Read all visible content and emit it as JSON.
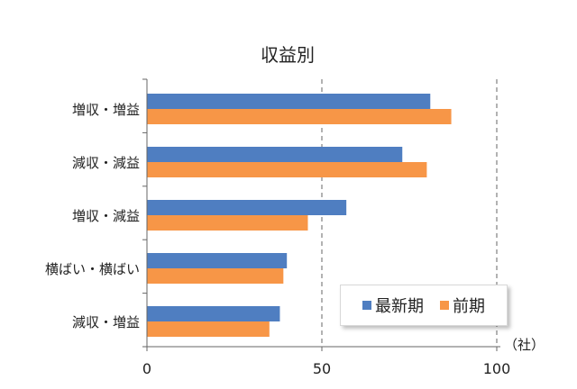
{
  "chart_data": {
    "type": "bar",
    "orientation": "horizontal",
    "title": "収益別",
    "categories": [
      "増収・増益",
      "減収・減益",
      "増収・減益",
      "横ばい・横ばい",
      "減収・増益"
    ],
    "series": [
      {
        "name": "最新期",
        "color": "#4f7ec1",
        "values": [
          81,
          73,
          57,
          40,
          38
        ]
      },
      {
        "name": "前期",
        "color": "#f79647",
        "values": [
          87,
          80,
          46,
          39,
          35
        ]
      }
    ],
    "xlim": [
      0,
      100
    ],
    "xticks": [
      "0",
      "50",
      "100"
    ],
    "x_unit_label": "（社）",
    "grid": "vertical dashed",
    "legend_position": "bottom-right"
  }
}
